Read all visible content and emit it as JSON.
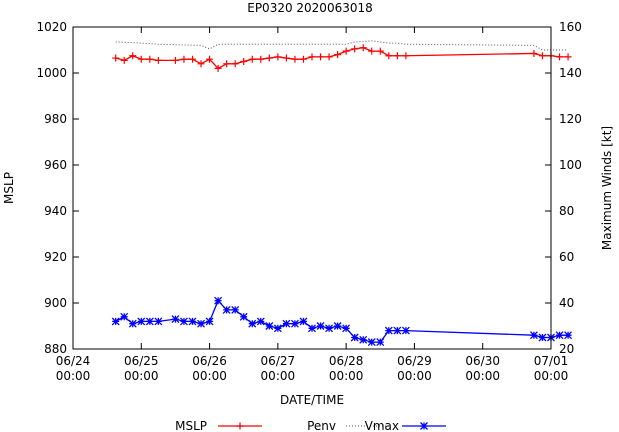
{
  "chart_data": {
    "type": "line",
    "title": "EP0320 2020063018",
    "xlabel": "DATE/TIME",
    "ylabel_left": "MSLP",
    "ylabel_right": "Maximum Winds [kt]",
    "x_unit": "hours since 06/24 00:00",
    "xlim": [
      0,
      168
    ],
    "ylim_left": [
      880,
      1020
    ],
    "ylim_right": [
      20,
      160
    ],
    "grid": false,
    "legend_position": "bottom",
    "x_ticks": [
      {
        "v": 0,
        "label": "06/24\n00:00"
      },
      {
        "v": 24,
        "label": "06/25\n00:00"
      },
      {
        "v": 48,
        "label": "06/26\n00:00"
      },
      {
        "v": 72,
        "label": "06/27\n00:00"
      },
      {
        "v": 96,
        "label": "06/28\n00:00"
      },
      {
        "v": 120,
        "label": "06/29\n00:00"
      },
      {
        "v": 144,
        "label": "06/30\n00:00"
      },
      {
        "v": 168,
        "label": "07/01\n00:00"
      }
    ],
    "y_ticks_left": [
      880,
      900,
      920,
      940,
      960,
      980,
      1000,
      1020
    ],
    "y_ticks_right": [
      20,
      40,
      60,
      80,
      100,
      120,
      140,
      160
    ],
    "legend": [
      "MSLP",
      "Penv",
      "Vmax"
    ],
    "series": [
      {
        "name": "MSLP",
        "axis": "left",
        "color": "#ff0000",
        "marker": "plus",
        "style": "solid",
        "x": [
          15,
          18,
          21,
          24,
          27,
          30,
          36,
          39,
          42,
          45,
          48,
          51,
          54,
          57,
          60,
          63,
          66,
          69,
          72,
          75,
          78,
          81,
          84,
          87,
          90,
          93,
          96,
          99,
          102,
          105,
          108,
          111,
          114,
          117,
          162,
          165,
          168,
          171,
          174
        ],
        "values": [
          1006.5,
          1005.5,
          1007.5,
          1006,
          1006,
          1005.5,
          1005.5,
          1006,
          1006,
          1004,
          1006,
          1002,
          1004,
          1004,
          1005,
          1006,
          1006,
          1006.5,
          1007,
          1006.5,
          1006,
          1006,
          1007,
          1007,
          1007,
          1008,
          1009.5,
          1010.5,
          1011,
          1009.5,
          1009.5,
          1007.5,
          1007.5,
          1007.5,
          1008.5,
          1007.5,
          1007.5,
          1007,
          1007
        ]
      },
      {
        "name": "Penv",
        "axis": "left",
        "color": "#555555",
        "marker": "none",
        "style": "dotted",
        "x": [
          15,
          24,
          30,
          45,
          48,
          51,
          60,
          72,
          84,
          96,
          99,
          105,
          108,
          111,
          114,
          117,
          162,
          165,
          174
        ],
        "values": [
          1013.5,
          1013,
          1012.5,
          1012,
          1010.5,
          1012.5,
          1012.5,
          1012.5,
          1012.5,
          1012.5,
          1013.5,
          1014,
          1013.5,
          1013,
          1013,
          1012.5,
          1012,
          1010,
          1010
        ]
      },
      {
        "name": "Vmax",
        "axis": "right",
        "color": "#0000ff",
        "marker": "cross",
        "style": "solid",
        "x": [
          15,
          18,
          21,
          24,
          27,
          30,
          36,
          39,
          42,
          45,
          48,
          51,
          54,
          57,
          60,
          63,
          66,
          69,
          72,
          75,
          78,
          81,
          84,
          87,
          90,
          93,
          96,
          99,
          102,
          105,
          108,
          111,
          114,
          117,
          162,
          165,
          168,
          171,
          174
        ],
        "values": [
          32,
          34,
          31,
          32,
          32,
          32,
          33,
          32,
          32,
          31,
          32,
          41,
          37,
          37,
          34,
          31,
          32,
          30,
          29,
          31,
          31,
          32,
          29,
          30,
          29,
          30,
          29,
          25,
          24,
          23,
          23,
          28,
          28,
          28,
          26,
          25,
          25,
          26,
          26
        ]
      }
    ]
  }
}
